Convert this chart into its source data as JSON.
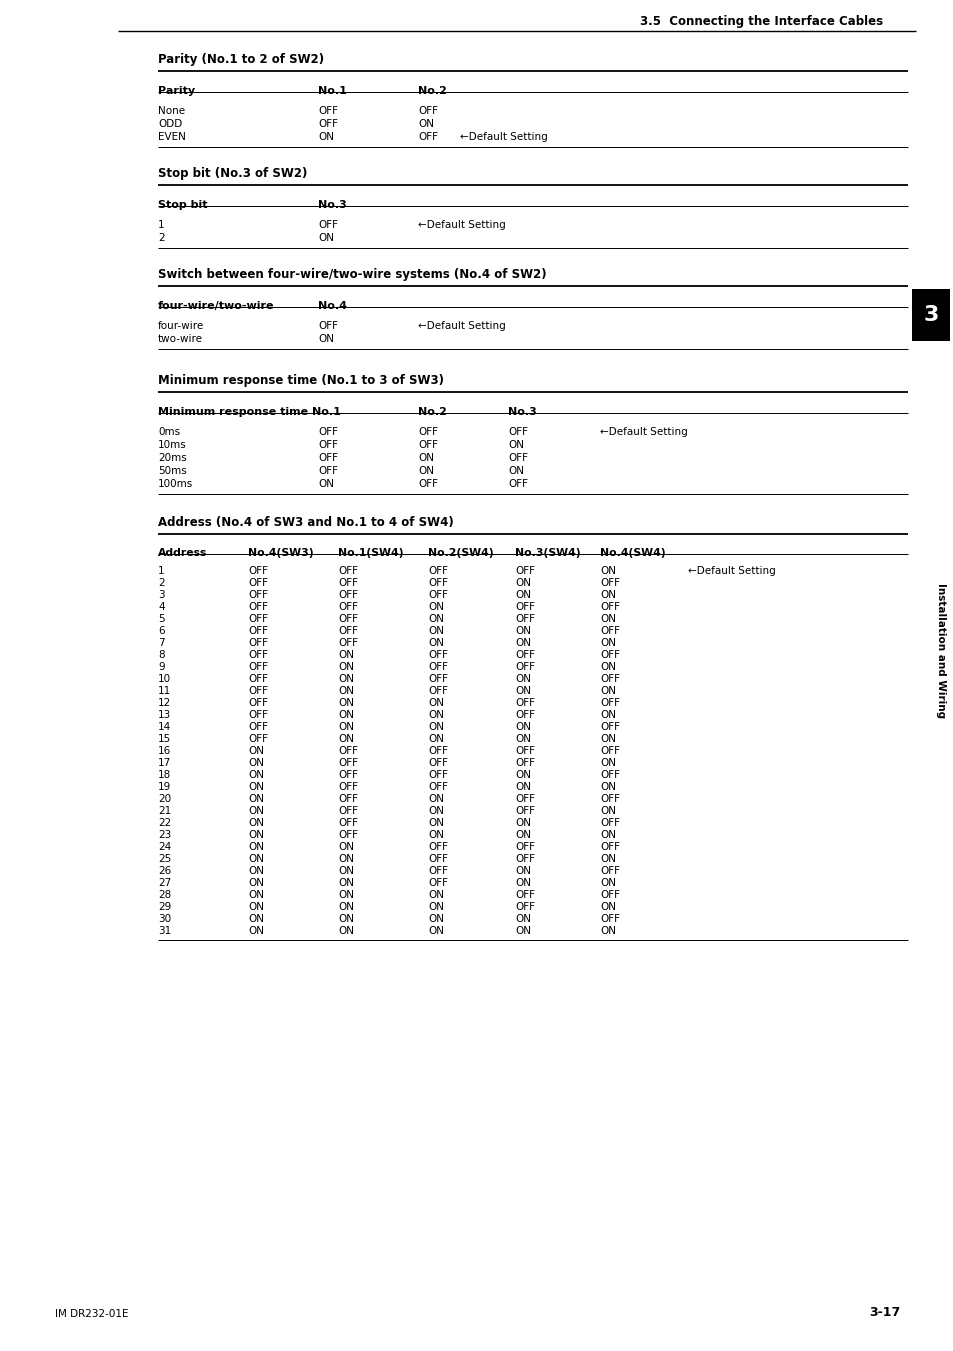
{
  "page_header": "3.5  Connecting the Interface Cables",
  "page_footer_left": "IM DR232-01E",
  "page_footer_right": "3-17",
  "sidebar_text": "Installation and Wiring",
  "sidebar_number": "3",
  "section1_title": "Parity (No.1 to 2 of SW2)",
  "section1_headers": [
    "Parity",
    "No.1",
    "No.2"
  ],
  "section1_data": [
    [
      "None",
      "OFF",
      "OFF",
      ""
    ],
    [
      "ODD",
      "OFF",
      "ON",
      ""
    ],
    [
      "EVEN",
      "ON",
      "OFF",
      "←Default Setting"
    ]
  ],
  "section2_title": "Stop bit (No.3 of SW2)",
  "section2_headers": [
    "Stop bit",
    "No.3"
  ],
  "section2_data": [
    [
      "1",
      "OFF",
      "←Default Setting"
    ],
    [
      "2",
      "ON",
      ""
    ]
  ],
  "section3_title": "Switch between four-wire/two-wire systems (No.4 of SW2)",
  "section3_headers": [
    "four-wire/two-wire",
    "No.4"
  ],
  "section3_data": [
    [
      "four-wire",
      "OFF",
      "←Default Setting"
    ],
    [
      "two-wire",
      "ON",
      ""
    ]
  ],
  "section4_title": "Minimum response time (No.1 to 3 of SW3)",
  "section4_headers": [
    "Minimum response time No.1",
    "No.2",
    "No.3"
  ],
  "section4_data": [
    [
      "0ms",
      "OFF",
      "OFF",
      "OFF",
      "←Default Setting"
    ],
    [
      "10ms",
      "OFF",
      "OFF",
      "ON",
      ""
    ],
    [
      "20ms",
      "OFF",
      "ON",
      "OFF",
      ""
    ],
    [
      "50ms",
      "OFF",
      "ON",
      "ON",
      ""
    ],
    [
      "100ms",
      "ON",
      "OFF",
      "OFF",
      ""
    ]
  ],
  "section5_title": "Address (No.4 of SW3 and No.1 to 4 of SW4)",
  "section5_headers": [
    "Address",
    "No.4(SW3)",
    "No.1(SW4)",
    "No.2(SW4)",
    "No.3(SW4)",
    "No.4(SW4)"
  ],
  "section5_data": [
    [
      "1",
      "OFF",
      "OFF",
      "OFF",
      "OFF",
      "ON",
      "←Default Setting"
    ],
    [
      "2",
      "OFF",
      "OFF",
      "OFF",
      "ON",
      "OFF",
      ""
    ],
    [
      "3",
      "OFF",
      "OFF",
      "OFF",
      "ON",
      "ON",
      ""
    ],
    [
      "4",
      "OFF",
      "OFF",
      "ON",
      "OFF",
      "OFF",
      ""
    ],
    [
      "5",
      "OFF",
      "OFF",
      "ON",
      "OFF",
      "ON",
      ""
    ],
    [
      "6",
      "OFF",
      "OFF",
      "ON",
      "ON",
      "OFF",
      ""
    ],
    [
      "7",
      "OFF",
      "OFF",
      "ON",
      "ON",
      "ON",
      ""
    ],
    [
      "8",
      "OFF",
      "ON",
      "OFF",
      "OFF",
      "OFF",
      ""
    ],
    [
      "9",
      "OFF",
      "ON",
      "OFF",
      "OFF",
      "ON",
      ""
    ],
    [
      "10",
      "OFF",
      "ON",
      "OFF",
      "ON",
      "OFF",
      ""
    ],
    [
      "11",
      "OFF",
      "ON",
      "OFF",
      "ON",
      "ON",
      ""
    ],
    [
      "12",
      "OFF",
      "ON",
      "ON",
      "OFF",
      "OFF",
      ""
    ],
    [
      "13",
      "OFF",
      "ON",
      "ON",
      "OFF",
      "ON",
      ""
    ],
    [
      "14",
      "OFF",
      "ON",
      "ON",
      "ON",
      "OFF",
      ""
    ],
    [
      "15",
      "OFF",
      "ON",
      "ON",
      "ON",
      "ON",
      ""
    ],
    [
      "16",
      "ON",
      "OFF",
      "OFF",
      "OFF",
      "OFF",
      ""
    ],
    [
      "17",
      "ON",
      "OFF",
      "OFF",
      "OFF",
      "ON",
      ""
    ],
    [
      "18",
      "ON",
      "OFF",
      "OFF",
      "ON",
      "OFF",
      ""
    ],
    [
      "19",
      "ON",
      "OFF",
      "OFF",
      "ON",
      "ON",
      ""
    ],
    [
      "20",
      "ON",
      "OFF",
      "ON",
      "OFF",
      "OFF",
      ""
    ],
    [
      "21",
      "ON",
      "OFF",
      "ON",
      "OFF",
      "ON",
      ""
    ],
    [
      "22",
      "ON",
      "OFF",
      "ON",
      "ON",
      "OFF",
      ""
    ],
    [
      "23",
      "ON",
      "OFF",
      "ON",
      "ON",
      "ON",
      ""
    ],
    [
      "24",
      "ON",
      "ON",
      "OFF",
      "OFF",
      "OFF",
      ""
    ],
    [
      "25",
      "ON",
      "ON",
      "OFF",
      "OFF",
      "ON",
      ""
    ],
    [
      "26",
      "ON",
      "ON",
      "OFF",
      "ON",
      "OFF",
      ""
    ],
    [
      "27",
      "ON",
      "ON",
      "OFF",
      "ON",
      "ON",
      ""
    ],
    [
      "28",
      "ON",
      "ON",
      "ON",
      "OFF",
      "OFF",
      ""
    ],
    [
      "29",
      "ON",
      "ON",
      "ON",
      "OFF",
      "ON",
      ""
    ],
    [
      "30",
      "ON",
      "ON",
      "ON",
      "ON",
      "OFF",
      ""
    ],
    [
      "31",
      "ON",
      "ON",
      "ON",
      "ON",
      "ON",
      ""
    ]
  ],
  "bg_color": "#ffffff",
  "text_color": "#000000"
}
